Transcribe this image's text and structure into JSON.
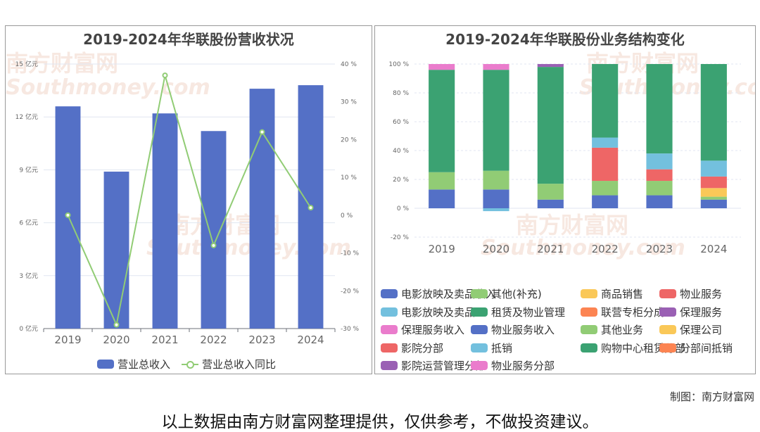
{
  "colors": {
    "bar": "#5470c6",
    "line": "#91cc75",
    "grid": "#e0e6f1",
    "axis_text": "#666666",
    "category_colors": [
      "#5470c6",
      "#91cc75",
      "#fac858",
      "#ee6666",
      "#73c0de",
      "#3ba272",
      "#fc8452",
      "#9a60b4",
      "#ea7ccc",
      "#5470c6",
      "#91cc75",
      "#fac858",
      "#ee6666",
      "#73c0de",
      "#3ba272",
      "#fc8452",
      "#9a60b4",
      "#ea7ccc"
    ]
  },
  "watermark": {
    "cn": "南方财富网",
    "en": "Southmoney.com"
  },
  "chart_data": [
    {
      "type": "bar",
      "title": "2019-2024年华联股份营收状况",
      "categories": [
        "2019",
        "2020",
        "2021",
        "2022",
        "2023",
        "2024"
      ],
      "y_left": {
        "ticks": [
          "0 亿元",
          "3 亿元",
          "6 亿元",
          "9 亿元",
          "12 亿元",
          "15 亿元"
        ],
        "ylim": [
          0,
          15
        ]
      },
      "y_right": {
        "ticks": [
          "-30 %",
          "-20 %",
          "-10 %",
          "0 %",
          "10 %",
          "20 %",
          "30 %",
          "40 %"
        ],
        "ylim": [
          -30,
          40
        ]
      },
      "series": [
        {
          "name": "营业总收入",
          "type": "bar",
          "axis": "left",
          "values": [
            12.6,
            8.9,
            12.2,
            11.2,
            13.6,
            13.8
          ]
        },
        {
          "name": "营业总收入同比",
          "type": "line",
          "axis": "right",
          "values": [
            0,
            -29,
            37,
            -8,
            22,
            2
          ]
        }
      ],
      "grid": true,
      "legend": "bottom"
    },
    {
      "type": "bar",
      "stacked": true,
      "title": "2019-2024年华联股份业务结构变化",
      "categories": [
        "2019",
        "2020",
        "2021",
        "2022",
        "2023",
        "2024"
      ],
      "y": {
        "ticks": [
          "-20 %",
          "0 %",
          "20 %",
          "40 %",
          "60 %",
          "80 %",
          "100 %"
        ],
        "ylim": [
          -20,
          100
        ]
      },
      "legend_items": [
        "电影放映及卖品收入",
        "其他(补充)",
        "商品销售",
        "物业服务",
        "电影放映及卖品",
        "租赁及物业管理",
        "联营专柜分成",
        "保理服务",
        "保理服务收入",
        "物业服务收入",
        "其他业务",
        "保理公司",
        "影院分部",
        "抵销",
        "购物中心租赁分部",
        "分部间抵销",
        "影院运营管理分部",
        "物业服务分部"
      ],
      "legend_rows": [
        [
          0,
          1,
          2,
          3
        ],
        [
          4,
          5,
          6,
          7
        ],
        [
          8,
          9,
          10,
          11
        ],
        [
          12,
          13,
          14,
          15
        ],
        [
          16,
          17
        ]
      ],
      "series": [
        {
          "name": "电影放映及卖品收入",
          "values": [
            13,
            0,
            0,
            0,
            0,
            0
          ]
        },
        {
          "name": "其他(补充)",
          "values": [
            12,
            0,
            0,
            0,
            0,
            0
          ]
        },
        {
          "name": "租赁及物业管理",
          "values": [
            71,
            0,
            0,
            0,
            0,
            0
          ]
        },
        {
          "name": "保理服务收入",
          "values": [
            4,
            0,
            0,
            0,
            0,
            0
          ]
        },
        {
          "name": "物业服务收入",
          "values": [
            0,
            13,
            0,
            0,
            0,
            0
          ]
        },
        {
          "name": "其他业务",
          "values": [
            0,
            13,
            0,
            0,
            0,
            0
          ]
        },
        {
          "name": "购物中心租赁分部",
          "values": [
            0,
            70,
            0,
            0,
            0,
            0
          ]
        },
        {
          "name": "物业服务分部",
          "values": [
            0,
            4,
            0,
            0,
            0,
            0
          ]
        },
        {
          "name": "抵销",
          "values": [
            0,
            -2,
            0,
            0,
            0,
            0
          ]
        },
        {
          "name": "电影放映及卖品收入",
          "values": [
            0,
            0,
            6,
            0,
            0,
            0
          ]
        },
        {
          "name": "其他(补充)",
          "values": [
            0,
            0,
            11,
            0,
            0,
            0
          ]
        },
        {
          "name": "租赁及物业管理",
          "values": [
            0,
            0,
            81,
            0,
            0,
            0
          ]
        },
        {
          "name": "保理服务",
          "values": [
            0,
            0,
            2,
            0,
            0,
            0
          ]
        },
        {
          "name": "电影放映及卖品收入",
          "values": [
            0,
            0,
            0,
            9,
            9,
            6
          ]
        },
        {
          "name": "其他(补充)",
          "values": [
            0,
            0,
            0,
            10,
            10,
            2
          ]
        },
        {
          "name": "商品销售",
          "values": [
            0,
            0,
            0,
            0,
            0,
            6
          ]
        },
        {
          "name": "物业服务",
          "values": [
            0,
            0,
            0,
            23,
            8,
            8
          ]
        },
        {
          "name": "电影放映及卖品",
          "values": [
            0,
            0,
            0,
            7,
            11,
            11
          ]
        },
        {
          "name": "租赁及物业管理",
          "values": [
            0,
            0,
            0,
            51,
            62,
            67
          ]
        }
      ],
      "grid": true,
      "legend": "bottom"
    }
  ],
  "footer": {
    "credit": "制图：南方财富网",
    "disclaimer": "以上数据由南方财富网整理提供，仅供参考，不做投资建议。"
  }
}
